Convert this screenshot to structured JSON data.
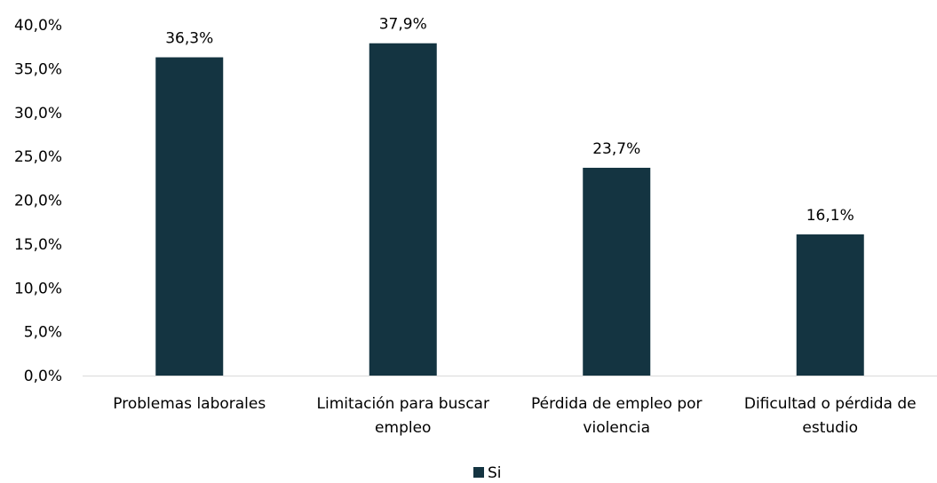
{
  "chart_data": {
    "type": "bar",
    "categories": [
      [
        "Problemas laborales"
      ],
      [
        "Limitación para buscar",
        "empleo"
      ],
      [
        "Pérdida de empleo por",
        "violencia"
      ],
      [
        "Dificultad o pérdida de",
        "estudio"
      ]
    ],
    "series": [
      {
        "name": "Si",
        "values": [
          36.3,
          37.9,
          23.7,
          16.1
        ],
        "data_labels": [
          "36,3%",
          "37,9%",
          "23,7%",
          "16,1%"
        ],
        "color": "#143441"
      }
    ],
    "y_ticks": [
      0,
      5,
      10,
      15,
      20,
      25,
      30,
      35,
      40
    ],
    "y_tick_labels": [
      "0,0%",
      "5,0%",
      "10,0%",
      "15,0%",
      "20,0%",
      "25,0%",
      "30,0%",
      "35,0%",
      "40,0%"
    ],
    "ylim": [
      0,
      40
    ],
    "grid": false,
    "legend_position": "bottom",
    "axis_color": "#d9d9d9"
  }
}
